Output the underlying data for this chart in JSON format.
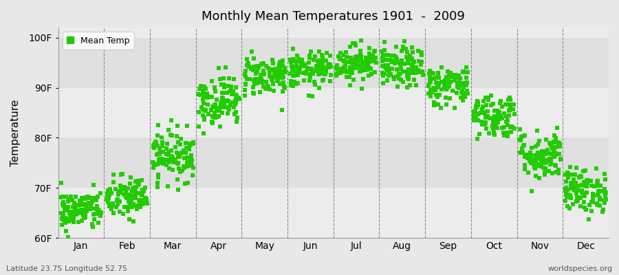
{
  "title": "Monthly Mean Temperatures 1901  -  2009",
  "ylabel": "Temperature",
  "background_color": "#e8e8e8",
  "plot_bg_color": "#e8e8e8",
  "dot_color": "#22cc00",
  "dot_marker": "s",
  "dot_size": 18,
  "ylim": [
    60,
    102
  ],
  "yticks": [
    60,
    70,
    80,
    90,
    100
  ],
  "ytick_labels": [
    "60F",
    "70F",
    "80F",
    "90F",
    "100F"
  ],
  "months": [
    "Jan",
    "Feb",
    "Mar",
    "Apr",
    "May",
    "Jun",
    "Jul",
    "Aug",
    "Sep",
    "Oct",
    "Nov",
    "Dec"
  ],
  "subtitle_lat": "Latitude 23.75 Longitude 52.75",
  "watermark": "worldspecies.org",
  "legend_label": "Mean Temp",
  "monthly_means": [
    65.5,
    68.0,
    76.5,
    87.5,
    92.5,
    93.5,
    95.0,
    94.0,
    90.5,
    84.5,
    76.5,
    69.5
  ],
  "monthly_spreads": [
    2.0,
    2.2,
    2.5,
    2.5,
    2.0,
    1.8,
    1.8,
    2.0,
    2.0,
    2.2,
    2.5,
    2.2
  ],
  "n_years": 109,
  "band_colors": [
    "#ececec",
    "#e0e0e0"
  ]
}
